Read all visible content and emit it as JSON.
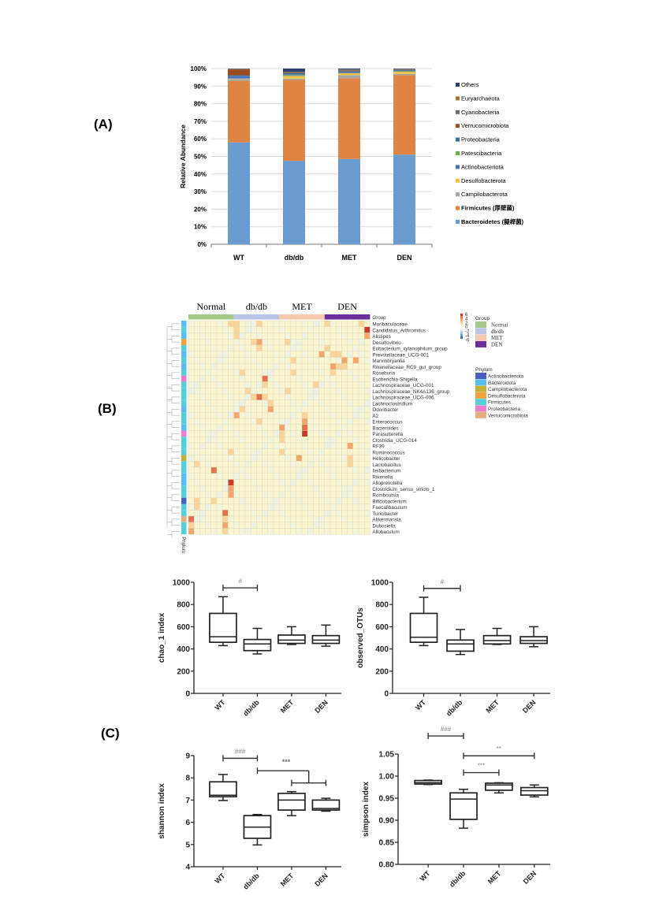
{
  "panels": {
    "a": "(A)",
    "b": "(B)",
    "c": "(C)"
  },
  "chart_data": [
    {
      "id": "A",
      "type": "bar",
      "stacked": true,
      "title": "",
      "xlabel": "",
      "ylabel": "Relative Abundance",
      "ylim": [
        0,
        100
      ],
      "yticks": [
        "0%",
        "10%",
        "20%",
        "30%",
        "40%",
        "50%",
        "60%",
        "70%",
        "80%",
        "90%",
        "100%"
      ],
      "grid": true,
      "legend_position": "right",
      "categories": [
        "WT",
        "db/db",
        "MET",
        "DEN"
      ],
      "series": [
        {
          "name": "Bacteroidetes (擬桿菌)",
          "color": "#6a9bd1",
          "bold": true,
          "values": [
            58,
            47.5,
            48.5,
            51
          ]
        },
        {
          "name": "Firmicutes (厚壁菌)",
          "color": "#e08443",
          "bold": true,
          "values": [
            35,
            46,
            46,
            45.2
          ]
        },
        {
          "name": "Campilobacterota",
          "color": "#a6a6a6",
          "values": [
            1.0,
            0.8,
            1.8,
            0.8
          ]
        },
        {
          "name": "Desulfobacterota",
          "color": "#f5c342",
          "values": [
            0.3,
            1.5,
            1.0,
            1.2
          ]
        },
        {
          "name": "Actinobacteriota",
          "color": "#4a70c4",
          "values": [
            1.5,
            0.3,
            0.4,
            0.2
          ]
        },
        {
          "name": "Patescibacteria",
          "color": "#6fae4a",
          "values": [
            0.1,
            0.4,
            0.2,
            0.3
          ]
        },
        {
          "name": "Proteobacteria",
          "color": "#3a6ea5",
          "values": [
            0.3,
            0.8,
            0.6,
            0.5
          ]
        },
        {
          "name": "Verrucomicrobiota",
          "color": "#9c4a1f",
          "values": [
            3.3,
            0.3,
            0.3,
            0.2
          ]
        },
        {
          "name": "Cyanobacteria",
          "color": "#6b6b6b",
          "values": [
            0.2,
            0.4,
            0.4,
            0.2
          ]
        },
        {
          "name": "Euryarchaeota",
          "color": "#9b7a2c",
          "values": [
            0.1,
            0.2,
            0.2,
            0.1
          ]
        },
        {
          "name": "Others",
          "color": "#2e3f73",
          "values": [
            0.2,
            1.8,
            0.6,
            0.3
          ]
        }
      ]
    },
    {
      "id": "B",
      "type": "heatmap",
      "title": "",
      "groups": [
        {
          "name": "Normal",
          "color": "#a6c98a",
          "n": 8
        },
        {
          "name": "db/db",
          "color": "#b9c4e6",
          "n": 8
        },
        {
          "name": "MET",
          "color": "#f4c9ac",
          "n": 8
        },
        {
          "name": "DEN",
          "color": "#6b2f9a",
          "n": 8
        }
      ],
      "group_row_label": "Group",
      "phylum_col_label": "Phylum",
      "colorbar": {
        "ticks": [
          "6",
          "4",
          "2",
          "0",
          "-2",
          "-4",
          "-6"
        ],
        "range": [
          -6,
          6
        ]
      },
      "legend_group_title": "Group",
      "legend_phylum_title": "Phylum",
      "phyla": [
        {
          "name": "Actinobacteriota",
          "color": "#4a5fc1"
        },
        {
          "name": "Bacteroidota",
          "color": "#5bbcef"
        },
        {
          "name": "Campilobacterota",
          "color": "#c3b13a"
        },
        {
          "name": "Desulfobacterota",
          "color": "#f0a33a"
        },
        {
          "name": "Firmicutes",
          "color": "#56cfd9"
        },
        {
          "name": "Proteobacteria",
          "color": "#ea7fcf"
        },
        {
          "name": "Verrucomicrobiota",
          "color": "#e8ad7f"
        }
      ],
      "rows": [
        {
          "name": "Muribaculaceae",
          "phylum": 1,
          "hot": [
            [
              7,
              1
            ],
            [
              8,
              1
            ],
            [
              12,
              1
            ],
            [
              24,
              1
            ],
            [
              30,
              1
            ]
          ]
        },
        {
          "name": "Candidatus_Arthromitus",
          "phylum": 4,
          "hot": [
            [
              8,
              1
            ],
            [
              31,
              4
            ]
          ]
        },
        {
          "name": "Alistipes",
          "phylum": 1,
          "hot": [
            [
              8,
              1
            ],
            [
              31,
              2
            ]
          ]
        },
        {
          "name": "Desulfovibrio",
          "phylum": 3,
          "hot": [
            [
              11,
              1
            ],
            [
              12,
              2
            ],
            [
              17,
              1
            ]
          ]
        },
        {
          "name": "Eubacterium_xylanophilum_group",
          "phylum": 4,
          "hot": [
            [
              12,
              1
            ],
            [
              24,
              1
            ]
          ]
        },
        {
          "name": "Prevotellaceae_UCG-001",
          "phylum": 1,
          "hot": [
            [
              23,
              2
            ],
            [
              25,
              1
            ],
            [
              26,
              1
            ]
          ]
        },
        {
          "name": "Marvinbryantia",
          "phylum": 4,
          "hot": [
            [
              18,
              1
            ],
            [
              27,
              2
            ],
            [
              29,
              2
            ]
          ]
        },
        {
          "name": "Rikenellaceae_RC9_gut_group",
          "phylum": 1,
          "hot": [
            [
              25,
              2
            ],
            [
              26,
              1
            ],
            [
              27,
              1
            ]
          ]
        },
        {
          "name": "Roseburia",
          "phylum": 4,
          "hot": [
            [
              9,
              1
            ],
            [
              18,
              1
            ],
            [
              25,
              1
            ]
          ]
        },
        {
          "name": "Escherichia-Shigella",
          "phylum": 5,
          "hot": [
            [
              13,
              3
            ]
          ]
        },
        {
          "name": "Lachnospiraceae_UCG-001",
          "phylum": 4,
          "hot": [
            [
              13,
              1
            ],
            [
              22,
              1
            ]
          ]
        },
        {
          "name": "Lachnospiraceae_NK4A136_group",
          "phylum": 4,
          "hot": [
            [
              10,
              1
            ],
            [
              17,
              1
            ]
          ]
        },
        {
          "name": "Lachnospiraceae_UCG-006",
          "phylum": 4,
          "hot": [
            [
              12,
              3
            ],
            [
              11,
              1
            ],
            [
              13,
              1
            ]
          ]
        },
        {
          "name": "Lachnoclostridium",
          "phylum": 4,
          "hot": [
            [
              14,
              1
            ]
          ]
        },
        {
          "name": "Odoribacter",
          "phylum": 1,
          "hot": [
            [
              9,
              1
            ],
            [
              14,
              2
            ]
          ]
        },
        {
          "name": "A2",
          "phylum": 4,
          "hot": [
            [
              8,
              2
            ],
            [
              20,
              1
            ]
          ]
        },
        {
          "name": "Enterococcus",
          "phylum": 4,
          "hot": [
            [
              12,
              1
            ],
            [
              20,
              2
            ]
          ]
        },
        {
          "name": "Bacteroides",
          "phylum": 1,
          "hot": [
            [
              16,
              2
            ],
            [
              20,
              3
            ]
          ]
        },
        {
          "name": "Parasutterella",
          "phylum": 5,
          "hot": [
            [
              16,
              1
            ],
            [
              20,
              4
            ]
          ]
        },
        {
          "name": "Clostridia_UCG-014",
          "phylum": 4,
          "hot": [
            [
              16,
              1
            ]
          ]
        },
        {
          "name": "RF39",
          "phylum": 4,
          "hot": [
            [
              28,
              2
            ]
          ]
        },
        {
          "name": "Ruminococcus",
          "phylum": 4,
          "hot": [
            [
              7,
              1
            ],
            [
              16,
              1
            ]
          ]
        },
        {
          "name": "Helicobacter",
          "phylum": 2,
          "hot": [
            [
              19,
              2
            ],
            [
              28,
              1
            ]
          ]
        },
        {
          "name": "Lactobacillus",
          "phylum": 4,
          "hot": [
            [
              1,
              1
            ],
            [
              28,
              1
            ]
          ]
        },
        {
          "name": "Ileibacterium",
          "phylum": 4,
          "hot": [
            [
              4,
              3
            ]
          ]
        },
        {
          "name": "Rikenella",
          "phylum": 1,
          "hot": []
        },
        {
          "name": "Alloprevotella",
          "phylum": 1,
          "hot": [
            [
              7,
              4
            ]
          ]
        },
        {
          "name": "Clostridium_sensu_stricto_1",
          "phylum": 4,
          "hot": [
            [
              7,
              2
            ]
          ]
        },
        {
          "name": "Romboutsia",
          "phylum": 4,
          "hot": [
            [
              7,
              2
            ]
          ]
        },
        {
          "name": "Bifidobacterium",
          "phylum": 0,
          "hot": [
            [
              1,
              1
            ],
            [
              4,
              1
            ]
          ]
        },
        {
          "name": "Faecalibaculum",
          "phylum": 4,
          "hot": [
            [
              1,
              1
            ]
          ]
        },
        {
          "name": "Turicibacter",
          "phylum": 4,
          "hot": [
            [
              6,
              3
            ]
          ]
        },
        {
          "name": "Akkermansia",
          "phylum": 6,
          "hot": [
            [
              0,
              3
            ],
            [
              6,
              1
            ]
          ]
        },
        {
          "name": "Dubosiella",
          "phylum": 4,
          "hot": [
            [
              0,
              1
            ],
            [
              6,
              2
            ]
          ]
        },
        {
          "name": "Allobaculum",
          "phylum": 4,
          "hot": [
            [
              0,
              2
            ],
            [
              6,
              1
            ]
          ]
        }
      ]
    },
    {
      "id": "C1",
      "type": "box",
      "ylabel": "chao_1 index",
      "ylim": [
        0,
        1000
      ],
      "yticks": [
        0,
        200,
        400,
        600,
        800,
        1000
      ],
      "categories": [
        "WT",
        "db/db",
        "MET",
        "DEN"
      ],
      "boxes": [
        {
          "min": 430,
          "q1": 460,
          "median": 510,
          "q3": 720,
          "max": 870
        },
        {
          "min": 355,
          "q1": 385,
          "median": 445,
          "q3": 485,
          "max": 585
        },
        {
          "min": 440,
          "q1": 450,
          "median": 480,
          "q3": 525,
          "max": 600
        },
        {
          "min": 425,
          "q1": 450,
          "median": 480,
          "q3": 520,
          "max": 615
        }
      ],
      "annotations": [
        {
          "from": 0,
          "to": 1,
          "y": 950,
          "label": "#"
        }
      ]
    },
    {
      "id": "C2",
      "type": "box",
      "ylabel": "observed_OTUs",
      "ylim": [
        0,
        1000
      ],
      "yticks": [
        0,
        200,
        400,
        600,
        800,
        1000
      ],
      "categories": [
        "WT",
        "db/db",
        "MET",
        "DEN"
      ],
      "boxes": [
        {
          "min": 430,
          "q1": 460,
          "median": 505,
          "q3": 720,
          "max": 865
        },
        {
          "min": 350,
          "q1": 380,
          "median": 445,
          "q3": 480,
          "max": 575
        },
        {
          "min": 440,
          "q1": 445,
          "median": 475,
          "q3": 520,
          "max": 585
        },
        {
          "min": 420,
          "q1": 450,
          "median": 475,
          "q3": 510,
          "max": 600
        }
      ],
      "annotations": [
        {
          "from": 0,
          "to": 1,
          "y": 945,
          "label": "#"
        }
      ]
    },
    {
      "id": "C3",
      "type": "box",
      "ylabel": "shannon index",
      "ylim": [
        4,
        9
      ],
      "yticks": [
        4,
        5,
        6,
        7,
        8,
        9
      ],
      "categories": [
        "WT",
        "db/db",
        "MET",
        "DEN"
      ],
      "boxes": [
        {
          "min": 6.98,
          "q1": 7.15,
          "median": 7.22,
          "q3": 7.82,
          "max": 8.15
        },
        {
          "min": 4.98,
          "q1": 5.28,
          "median": 5.78,
          "q3": 6.3,
          "max": 6.35
        },
        {
          "min": 6.3,
          "q1": 6.55,
          "median": 7.0,
          "q3": 7.3,
          "max": 7.38
        },
        {
          "min": 6.5,
          "q1": 6.55,
          "median": 6.62,
          "q3": 7.0,
          "max": 7.08
        }
      ],
      "annotations": [
        {
          "from": 0,
          "to": 1,
          "y": 8.88,
          "label": "###"
        },
        {
          "from": 1,
          "to": 2.5,
          "y": 8.32,
          "label": "***",
          "bracket_drop": 0.55,
          "sub": {
            "from": 2,
            "to": 3,
            "y": 7.77
          }
        }
      ]
    },
    {
      "id": "C4",
      "type": "box",
      "ylabel": "simpson index",
      "ylim": [
        0.8,
        1.05
      ],
      "yticks": [
        "0.80",
        "0.85",
        "0.90",
        "0.95",
        "1.00",
        "1.05"
      ],
      "categories": [
        "WT",
        "db/db",
        "MET",
        "DEN"
      ],
      "boxes": [
        {
          "min": 0.981,
          "q1": 0.982,
          "median": 0.985,
          "q3": 0.99,
          "max": 0.991
        },
        {
          "min": 0.882,
          "q1": 0.902,
          "median": 0.948,
          "q3": 0.962,
          "max": 0.97
        },
        {
          "min": 0.962,
          "q1": 0.968,
          "median": 0.98,
          "q3": 0.984,
          "max": 0.985
        },
        {
          "min": 0.953,
          "q1": 0.957,
          "median": 0.967,
          "q3": 0.974,
          "max": 0.98
        }
      ],
      "annotations": [
        {
          "from": 0,
          "to": 1,
          "y": 1.091,
          "label": "###"
        },
        {
          "from": 1,
          "to": 3,
          "y": 1.046,
          "label": "**"
        },
        {
          "from": 1,
          "to": 2,
          "y": 1.008,
          "label": "***"
        }
      ]
    }
  ]
}
